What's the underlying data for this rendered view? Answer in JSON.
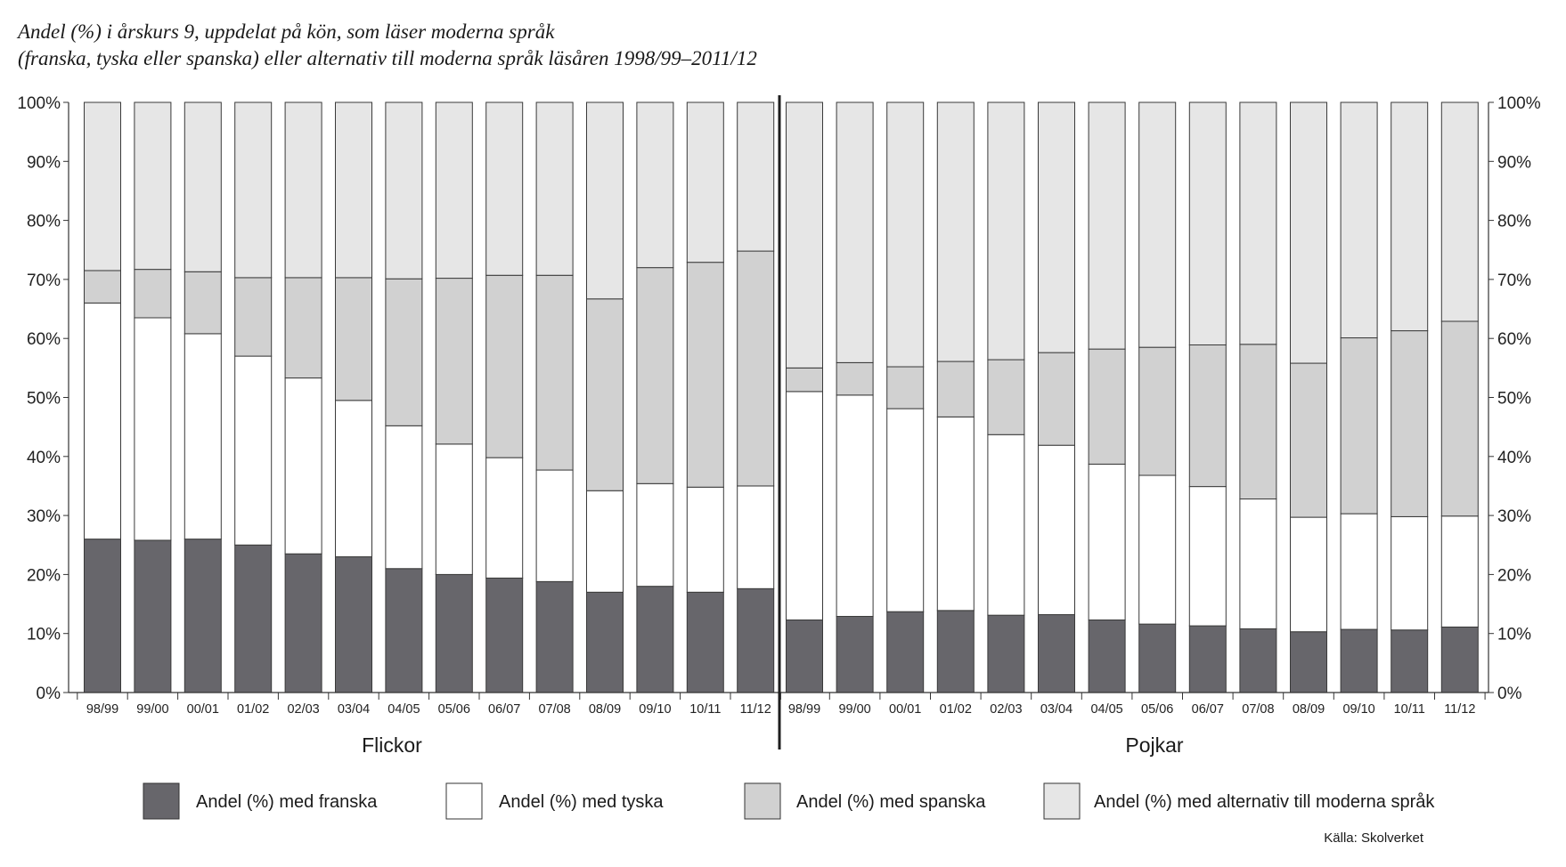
{
  "chart_data": {
    "type": "bar",
    "stacked": true,
    "title_lines": [
      "Andel (%) i årskurs 9, uppdelat på kön, som läser moderna språk",
      "(franska, tyska eller spanska) eller alternativ till moderna språk läsåren 1998/99–2011/12"
    ],
    "xlabel": "",
    "ylabel": "",
    "ylim": [
      0,
      100
    ],
    "yticks": [
      "0%",
      "10%",
      "20%",
      "30%",
      "40%",
      "50%",
      "60%",
      "70%",
      "80%",
      "90%",
      "100%"
    ],
    "categories": [
      "98/99",
      "99/00",
      "00/01",
      "01/02",
      "02/03",
      "03/04",
      "04/05",
      "05/06",
      "06/07",
      "07/08",
      "08/09",
      "09/10",
      "10/11",
      "11/12"
    ],
    "series": [
      {
        "name": "Andel (%) med franska",
        "color": "#67666b"
      },
      {
        "name": "Andel (%) med tyska",
        "color": "#ffffff"
      },
      {
        "name": "Andel (%) med spanska",
        "color": "#d1d1d1"
      },
      {
        "name": "Andel (%) med alternativ till moderna språk",
        "color": "#e6e6e6"
      }
    ],
    "groups": [
      {
        "name": "Flickor",
        "series_values": [
          [
            26.0,
            25.8,
            26.0,
            25.0,
            23.5,
            23.0,
            21.0,
            20.0,
            19.4,
            18.8,
            17.0,
            18.0,
            17.0,
            17.6
          ],
          [
            40.0,
            37.7,
            34.8,
            32.0,
            29.8,
            26.5,
            24.2,
            22.1,
            20.4,
            18.9,
            17.2,
            17.4,
            17.8,
            17.4
          ],
          [
            5.5,
            8.2,
            10.5,
            13.3,
            17.0,
            20.8,
            24.9,
            28.1,
            30.9,
            33.0,
            32.5,
            36.6,
            38.1,
            39.8
          ],
          [
            28.5,
            28.3,
            28.7,
            29.7,
            29.7,
            29.7,
            29.9,
            29.8,
            29.3,
            29.3,
            33.3,
            28.0,
            27.1,
            25.2
          ]
        ]
      },
      {
        "name": "Pojkar",
        "series_values": [
          [
            12.3,
            12.9,
            13.7,
            13.9,
            13.1,
            13.2,
            12.3,
            11.6,
            11.3,
            10.8,
            10.3,
            10.7,
            10.6,
            11.1
          ],
          [
            38.7,
            37.5,
            34.4,
            32.8,
            30.6,
            28.7,
            26.4,
            25.2,
            23.6,
            22.0,
            19.4,
            19.6,
            19.2,
            18.8
          ],
          [
            4.0,
            5.5,
            7.1,
            9.4,
            12.7,
            15.7,
            19.5,
            21.7,
            24.0,
            26.2,
            26.1,
            29.8,
            31.5,
            33.0
          ],
          [
            45.0,
            44.1,
            44.8,
            43.9,
            43.6,
            42.4,
            41.8,
            41.5,
            41.1,
            41.0,
            44.2,
            39.9,
            38.7,
            37.1
          ]
        ]
      }
    ],
    "legend_position": "bottom"
  },
  "source": "Källa: Skolverket"
}
